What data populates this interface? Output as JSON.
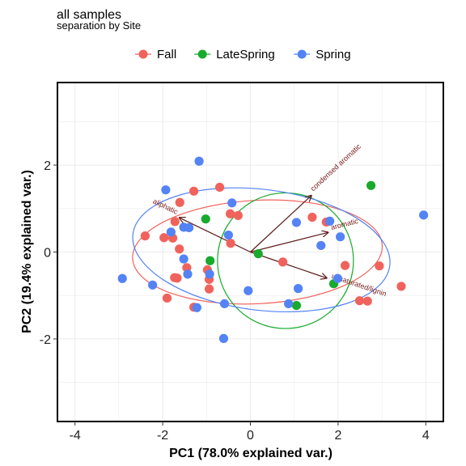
{
  "chart_data": {
    "type": "scatter",
    "title": "all samples",
    "subtitle": "separation by Site",
    "xlabel": "PC1 (78.0% explained var.)",
    "ylabel": "PC2 (19.4% explained var.)",
    "xlim": [
      -4.4,
      4.4
    ],
    "ylim": [
      -3.9,
      3.9
    ],
    "xticks": [
      -4,
      -2,
      0,
      2,
      4
    ],
    "yticks": [
      -2,
      0,
      2
    ],
    "grid": true,
    "legend_position": "top",
    "series": [
      {
        "name": "Fall",
        "color": "#F0635C",
        "points": [
          [
            -2.4,
            0.37
          ],
          [
            -1.97,
            0.33
          ],
          [
            -1.77,
            0.32
          ],
          [
            -1.72,
            0.7
          ],
          [
            -1.61,
            1.14
          ],
          [
            -1.29,
            1.4
          ],
          [
            -0.7,
            1.49
          ],
          [
            -0.46,
            0.88
          ],
          [
            -0.28,
            0.84
          ],
          [
            -0.45,
            0.2
          ],
          [
            -1.62,
            0.07
          ],
          [
            -1.45,
            -0.36
          ],
          [
            -1.73,
            -0.59
          ],
          [
            -1.67,
            -0.6
          ],
          [
            -0.98,
            -0.41
          ],
          [
            -0.94,
            -0.63
          ],
          [
            -0.94,
            -0.85
          ],
          [
            -1.9,
            -1.06
          ],
          [
            -1.29,
            -1.27
          ],
          [
            0.74,
            -0.23
          ],
          [
            1.41,
            0.8
          ],
          [
            1.73,
            0.69
          ],
          [
            2.16,
            -0.31
          ],
          [
            2.49,
            -1.12
          ],
          [
            2.67,
            -1.13
          ],
          [
            2.94,
            -0.32
          ],
          [
            3.44,
            -0.79
          ]
        ]
      },
      {
        "name": "LateSpring",
        "color": "#18AA2C",
        "points": [
          [
            2.75,
            1.53
          ],
          [
            -1.02,
            0.76
          ],
          [
            -0.92,
            -0.2
          ],
          [
            0.18,
            -0.04
          ],
          [
            1.05,
            -1.23
          ],
          [
            1.9,
            -0.73
          ]
        ]
      },
      {
        "name": "Spring",
        "color": "#5383F5",
        "points": [
          [
            -1.17,
            2.09
          ],
          [
            -1.93,
            1.43
          ],
          [
            -0.42,
            1.13
          ],
          [
            -1.52,
            0.57
          ],
          [
            -1.4,
            0.56
          ],
          [
            -1.81,
            0.46
          ],
          [
            -0.5,
            0.39
          ],
          [
            -1.52,
            -0.16
          ],
          [
            -1.43,
            -0.51
          ],
          [
            -0.93,
            -0.51
          ],
          [
            -2.92,
            -0.61
          ],
          [
            -2.23,
            -0.76
          ],
          [
            -1.22,
            -1.28
          ],
          [
            -0.59,
            -1.19
          ],
          [
            -0.05,
            -0.89
          ],
          [
            -0.61,
            -1.99
          ],
          [
            1.05,
            0.68
          ],
          [
            1.81,
            0.71
          ],
          [
            2.05,
            0.35
          ],
          [
            1.61,
            0.15
          ],
          [
            1.09,
            -0.84
          ],
          [
            0.87,
            -1.19
          ],
          [
            1.99,
            -0.61
          ],
          [
            3.95,
            0.85
          ]
        ]
      }
    ],
    "ellipses": [
      {
        "series": "Fall",
        "color": "#F0635C",
        "center": [
          0.16,
          0.0
        ],
        "semi_axes": [
          2.85,
          1.19
        ],
        "angle_deg": -3
      },
      {
        "series": "LateSpring",
        "color": "#18AA2C",
        "center": [
          0.8,
          -0.2
        ],
        "semi_axes": [
          1.55,
          1.56
        ],
        "angle_deg": -13
      },
      {
        "series": "Spring",
        "color": "#5383F5",
        "center": [
          0.25,
          0.05
        ],
        "semi_axes": [
          2.95,
          1.39
        ],
        "angle_deg": 7
      }
    ],
    "loadings": {
      "color": "#5E1A1A",
      "arrows": [
        {
          "label": "aliphatic",
          "x": -1.62,
          "y": 0.79
        },
        {
          "label": "condensed aromatic",
          "x": 1.39,
          "y": 1.3
        },
        {
          "label": "aromatic",
          "x": 1.77,
          "y": 0.45
        },
        {
          "label": "unsaturated/lignin",
          "x": 1.74,
          "y": -0.6
        }
      ]
    }
  }
}
